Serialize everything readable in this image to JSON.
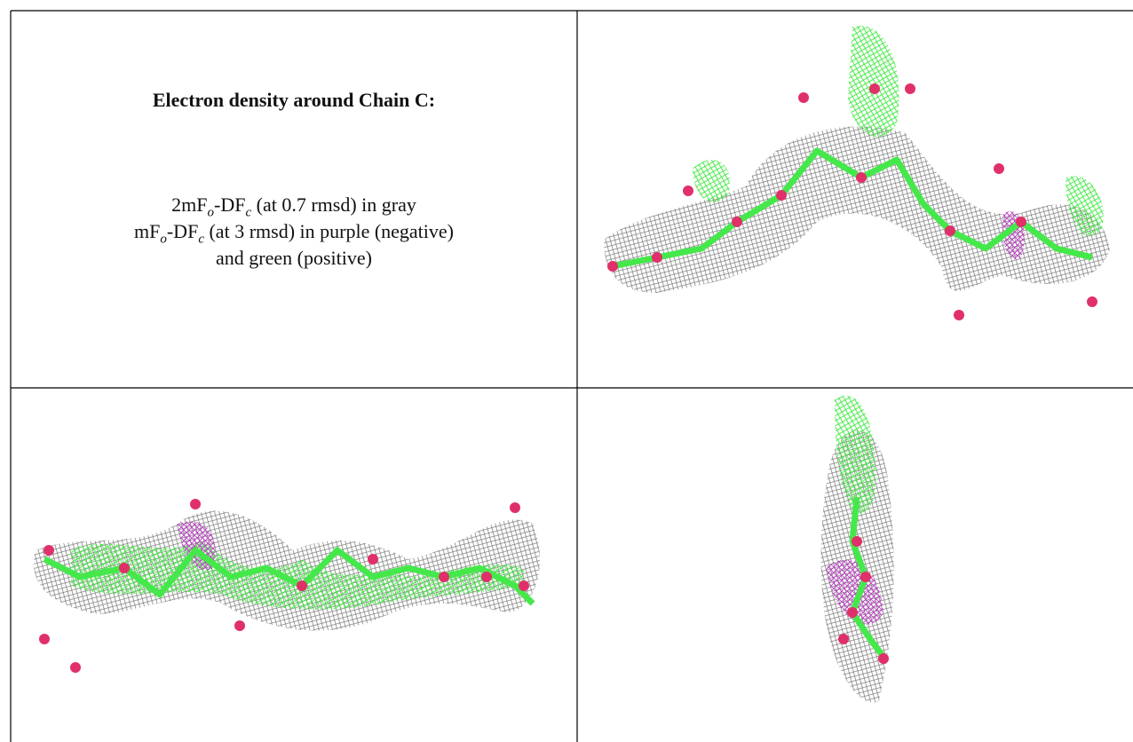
{
  "caption": {
    "title": "Electron density around Chain C:",
    "line1": {
      "parts": [
        "2mF",
        "o",
        "-DF",
        "c",
        " (at 0.7 rmsd) in gray"
      ]
    },
    "line2": {
      "parts": [
        "mF",
        "o",
        "-DF",
        "c",
        " (at 3 rmsd) in purple (negative)"
      ]
    },
    "line3": "and green (positive)"
  }
}
